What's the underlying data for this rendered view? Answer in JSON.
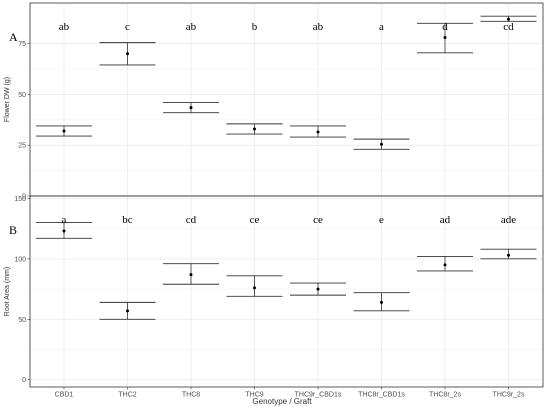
{
  "figure": {
    "xlabel": "Genotype / Graft",
    "categories": [
      "CBD1",
      "THC2",
      "THC8",
      "THC9",
      "THC9r_CBD1s",
      "THC8r_CBD1s",
      "THC8r_2s",
      "THC9r_2s"
    ]
  },
  "chart_data": [
    {
      "type": "scatter",
      "panel_label": "A",
      "ylabel": "Flower DW (g)",
      "ylim": [
        0,
        95
      ],
      "yticks": [
        0,
        25,
        50,
        75
      ],
      "grid": true,
      "categories": [
        "CBD1",
        "THC2",
        "THC8",
        "THC9",
        "THC9r_CBD1s",
        "THC8r_CBD1s",
        "THC8r_2s",
        "THC9r_2s"
      ],
      "series": [
        {
          "mean": [
            32,
            70,
            43.5,
            33,
            31.5,
            25.5,
            78,
            87
          ],
          "lower": [
            29.5,
            64.5,
            41,
            30.5,
            29,
            23,
            70.5,
            86
          ],
          "upper": [
            34.5,
            75.5,
            46,
            35.5,
            34.5,
            28,
            85,
            88.5
          ]
        }
      ],
      "letters": [
        "ab",
        "c",
        "ab",
        "b",
        "ab",
        "a",
        "d",
        "cd"
      ]
    },
    {
      "type": "scatter",
      "panel_label": "B",
      "ylabel": "Root Area (mm)",
      "ylim": [
        -6,
        152
      ],
      "yticks": [
        0,
        50,
        100,
        150
      ],
      "grid": true,
      "categories": [
        "CBD1",
        "THC2",
        "THC8",
        "THC9",
        "THC9r_CBD1s",
        "THC8r_CBD1s",
        "THC8r_2s",
        "THC9r_2s"
      ],
      "series": [
        {
          "mean": [
            123,
            57,
            87,
            76,
            75,
            64,
            95,
            103
          ],
          "lower": [
            117,
            50,
            79,
            69,
            70,
            57,
            90,
            100
          ],
          "upper": [
            130,
            64,
            96,
            86,
            80,
            72,
            102,
            108
          ]
        }
      ],
      "letters": [
        "a",
        "bc",
        "cd",
        "ce",
        "ce",
        "e",
        "ad",
        "ade"
      ]
    }
  ]
}
